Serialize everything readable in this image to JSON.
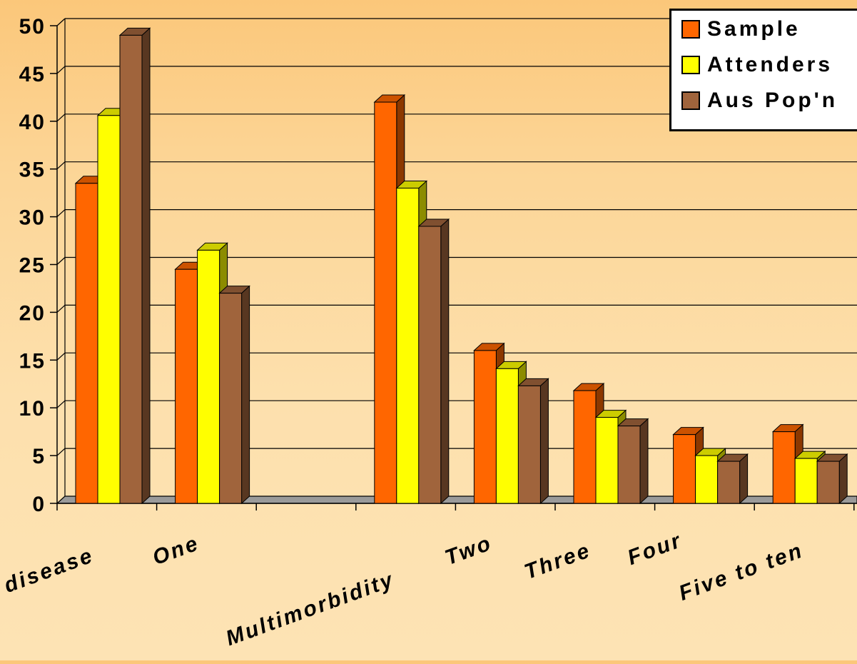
{
  "chart_data": {
    "type": "bar",
    "categories": [
      "disease",
      "One",
      "",
      "Multimorbidity",
      "Two",
      "Three",
      "Four",
      "Five to ten"
    ],
    "series": [
      {
        "name": "Sample",
        "color": "#ff6600",
        "values": [
          33.5,
          24.5,
          null,
          42,
          16,
          11.8,
          7.2,
          7.5
        ]
      },
      {
        "name": "Attenders",
        "color": "#ffff00",
        "values": [
          40.6,
          26.5,
          null,
          33,
          14.1,
          9,
          5,
          4.7
        ]
      },
      {
        "name": "Aus Pop'n",
        "color": "#a0643c",
        "values": [
          49,
          22,
          null,
          29,
          12.3,
          8.1,
          4.4,
          4.4
        ]
      }
    ],
    "yticks": [
      0,
      5,
      10,
      15,
      20,
      25,
      30,
      35,
      40,
      45,
      50
    ],
    "ylim": [
      0,
      50
    ],
    "grid": true,
    "legend_position": "top-right",
    "title": "",
    "xlabel": "",
    "ylabel": ""
  }
}
